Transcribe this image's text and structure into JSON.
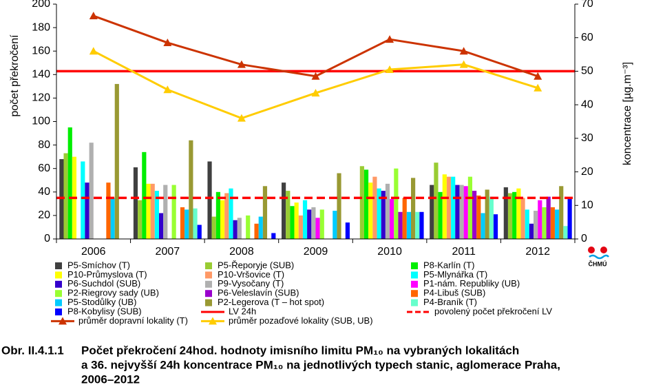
{
  "chart_data": {
    "type": "bar",
    "ylabel": "počet překročení",
    "y2label": "koncentrace [µg.m⁻³]",
    "categories": [
      "2006",
      "2007",
      "2008",
      "2009",
      "2010",
      "2011",
      "2012"
    ],
    "ylim": [
      0,
      200
    ],
    "yticks": [
      0,
      20,
      40,
      60,
      80,
      100,
      120,
      140,
      160,
      180,
      200
    ],
    "y2lim": [
      0,
      70
    ],
    "y2ticks": [
      0,
      10,
      20,
      30,
      40,
      50,
      60,
      70
    ],
    "series": [
      {
        "name": "P5-Smíchov (T)",
        "color": "#404040",
        "values": [
          68,
          61,
          66,
          48,
          null,
          46,
          44
        ]
      },
      {
        "name": "P5-Řeporyje (SUB)",
        "color": "#99cc33",
        "values": [
          73,
          33,
          19,
          41,
          62,
          65,
          39
        ]
      },
      {
        "name": "P8-Karlín (T)",
        "color": "#00ee00",
        "values": [
          95,
          74,
          40,
          28,
          59,
          40,
          40
        ]
      },
      {
        "name": "P10-Průmyslova (T)",
        "color": "#ffff00",
        "values": [
          70,
          47,
          33,
          31,
          48,
          55,
          43
        ]
      },
      {
        "name": "P10-Vršovice (T)",
        "color": "#ff9966",
        "values": [
          null,
          47,
          39,
          20,
          53,
          53,
          35
        ]
      },
      {
        "name": "P5-Mlynářka (T)",
        "color": "#00ffff",
        "values": [
          66,
          41,
          43,
          33,
          43,
          53,
          25
        ]
      },
      {
        "name": "P6-Suchdol (SUB)",
        "color": "#3300cc",
        "values": [
          48,
          22,
          16,
          25,
          41,
          46,
          13
        ]
      },
      {
        "name": "P9-Vysočany (T)",
        "color": "#b0b0b0",
        "values": [
          82,
          46,
          18,
          27,
          47,
          46,
          24
        ]
      },
      {
        "name": "P1-nám. Republiky (UB)",
        "color": "#ff00ff",
        "values": [
          null,
          null,
          null,
          18,
          34,
          45,
          33
        ]
      },
      {
        "name": "P2-Riegrovy sady (UB)",
        "color": "#99ff33",
        "values": [
          null,
          46,
          20,
          25,
          60,
          53,
          27
        ]
      },
      {
        "name": "P6-Veleslavín (SUB)",
        "color": "#9900cc",
        "values": [
          null,
          null,
          null,
          null,
          23,
          41,
          36
        ]
      },
      {
        "name": "P4-Libuš (SUB)",
        "color": "#ff6600",
        "values": [
          48,
          27,
          13,
          null,
          35,
          37,
          27
        ]
      },
      {
        "name": "P5-Stodůlky (UB)",
        "color": "#00ccff",
        "values": [
          35,
          25,
          19,
          24,
          23,
          22,
          25
        ]
      },
      {
        "name": "P2-Legerova (T – hot spot)",
        "color": "#999933",
        "values": [
          132,
          84,
          45,
          56,
          52,
          42,
          45
        ]
      },
      {
        "name": "P4-Braník (T)",
        "color": "#66ffcc",
        "values": [
          null,
          26,
          null,
          null,
          23,
          36,
          11
        ]
      },
      {
        "name": "P8-Kobylisy (SUB)",
        "color": "#0000ff",
        "values": [
          null,
          12,
          5,
          14,
          23,
          21,
          34
        ]
      },
      {
        "name": "průměr dopravní lokality (T)",
        "color": "#cc3300",
        "type": "line",
        "axis": "y2",
        "values": [
          66.5,
          58.5,
          52,
          48.5,
          59.5,
          56,
          48.5
        ]
      },
      {
        "name": "průměr pozaďové lokality (SUB, UB)",
        "color": "#ffcc00",
        "type": "line",
        "axis": "y2",
        "values": [
          56,
          44.5,
          36,
          43.5,
          50.5,
          52,
          45
        ]
      }
    ],
    "reference_lines": [
      {
        "name": "LV 24h",
        "value": 50,
        "axis": "y2",
        "color": "#ff0000",
        "style": "solid"
      },
      {
        "name": "povolený počet překročení LV",
        "value": 35,
        "axis": "y",
        "color": "#ff0000",
        "style": "dashed"
      }
    ],
    "logo": "ČHMÚ",
    "caption": {
      "number": "Obr. II.4.1.1",
      "lines": [
        "Počet překročení 24hod. hodnoty imisního limitu PM₁₀ na vybraných lokalitách",
        "a 36. nejvyšší 24h koncentrace PM₁₀ na jednotlivých typech stanic, aglomerace Praha,",
        "2006–2012"
      ]
    }
  }
}
